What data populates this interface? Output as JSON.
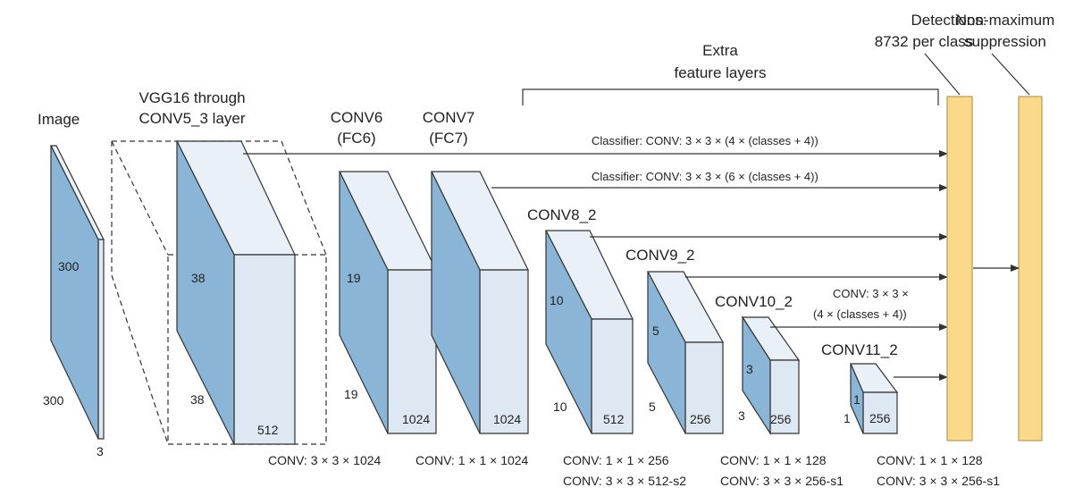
{
  "labels": {
    "image": "Image",
    "vgg_line1": "VGG16 through",
    "vgg_line2": "CONV5_3 layer",
    "conv6_line1": "CONV6",
    "conv6_line2": "(FC6)",
    "conv7_line1": "CONV7",
    "conv7_line2": "(FC7)",
    "extra_line1": "Extra",
    "extra_line2": "feature layers",
    "conv8": "CONV8_2",
    "conv9": "CONV9_2",
    "conv10": "CONV10_2",
    "conv11": "CONV11_2",
    "detections_line1": "Detections:",
    "detections_line2": "8732 per class",
    "nms_line1": "Non-maximum",
    "nms_line2": "suppression"
  },
  "dims": {
    "image_h": "300",
    "image_w": "300",
    "image_d": "3",
    "vgg_h": "38",
    "vgg_w": "38",
    "vgg_d": "512",
    "conv6_h": "19",
    "conv6_w": "19",
    "conv6_d": "1024",
    "conv7_d": "1024",
    "conv8_h": "10",
    "conv8_w": "10",
    "conv8_d": "512",
    "conv9_h": "5",
    "conv9_w": "5",
    "conv9_d": "256",
    "conv10_h": "3",
    "conv10_w": "3",
    "conv10_d": "256",
    "conv11_h": "1",
    "conv11_w": "1",
    "conv11_d": "256"
  },
  "classifiers": {
    "c1": "Classifier: CONV: 3 × 3 × (4 × (classes + 4))",
    "c2": "Classifier: CONV: 3 × 3 × (6 × (classes + 4))",
    "c3_line1": "CONV: 3 × 3 ×",
    "c3_line2": "(4 × (classes + 4))"
  },
  "ops": {
    "conv6": "CONV: 3 × 3 × 1024",
    "conv7": "CONV: 1 × 1 × 1024",
    "conv8_a": "CONV: 1 × 1 × 256",
    "conv8_b": "CONV: 3 × 3 × 512-s2",
    "conv9_a": "CONV: 1 × 1 × 128",
    "conv9_b": "CONV: 3 × 3 × 256-s1",
    "conv10_a": "CONV: 1 × 1 × 128",
    "conv10_b": "CONV: 3 × 3 × 256-s1"
  },
  "colors": {
    "front_face": "#dde8f3",
    "side_face": "#8bb5d6",
    "top_face": "#e9f0f8",
    "detection_bar": "#fbd98a"
  }
}
